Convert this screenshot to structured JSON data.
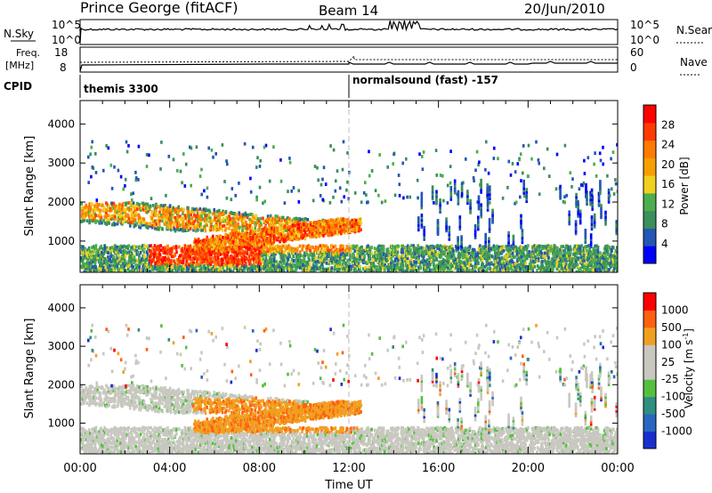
{
  "header": {
    "title": "Prince George (fitACF)",
    "beam": "Beam 14",
    "date": "20/Jun/2010"
  },
  "noise_panel": {
    "left_label": "N.Sky",
    "right_label": "N.Search",
    "left_ticks": [
      "10^5",
      "10^0"
    ],
    "right_ticks": [
      "10^5",
      "10^0"
    ]
  },
  "freq_panel": {
    "left_label_line1": "Freq.",
    "left_label_line2": "[MHz]",
    "right_label": "Nave",
    "left_ticks": [
      "18",
      "8"
    ],
    "right_ticks": [
      "60",
      "0"
    ]
  },
  "cpid": {
    "label": "CPID",
    "segments": [
      {
        "text": "themis 3300",
        "start_hour": 0
      },
      {
        "text": "normalsound (fast) -157",
        "start_hour": 12
      }
    ]
  },
  "power_panel": {
    "ylabel": "Slant Range [km]",
    "yticks": [
      "4000",
      "3000",
      "2000",
      "1000"
    ],
    "colorbar_label": "Power [dB]",
    "colorbar_ticks": [
      "28",
      "24",
      "20",
      "16",
      "12",
      "8",
      "4"
    ],
    "colors": [
      "#0000ff",
      "#2456b4",
      "#3b8f5b",
      "#4cae4c",
      "#f0d020",
      "#f5a000",
      "#ff7a00",
      "#ff3a00",
      "#ff0000"
    ]
  },
  "velocity_panel": {
    "ylabel": "Slant Range [km]",
    "yticks": [
      "4000",
      "3000",
      "2000",
      "1000"
    ],
    "colorbar_label": "Velocity [m s",
    "colorbar_sup": "-1",
    "colorbar_label_end": "]",
    "colorbar_ticks": [
      "1000",
      "500",
      "100",
      "25",
      "-25",
      "-100",
      "-500",
      "-1000"
    ],
    "colors": [
      "#1a2ed0",
      "#2a66c0",
      "#2f8f80",
      "#55c040",
      "#c8c8c0",
      "#c8c8c0",
      "#f0a020",
      "#ff6010",
      "#ff0000"
    ]
  },
  "xaxis": {
    "label": "Time UT",
    "ticks": [
      "00:00",
      "04:00",
      "08:00",
      "12:00",
      "16:00",
      "20:00",
      "00:00"
    ]
  },
  "chart_data": {
    "type": "heatmap",
    "title": "Prince George (fitACF)",
    "xlabel": "Time UT",
    "ylabel": "Slant Range [km]",
    "xlim": [
      0,
      24
    ],
    "ylim": [
      200,
      4600
    ],
    "panels": [
      "Power [dB]",
      "Velocity [m s-1]"
    ],
    "power_scale": [
      0,
      30
    ],
    "velocity_scale": [
      -1000,
      1000
    ]
  }
}
